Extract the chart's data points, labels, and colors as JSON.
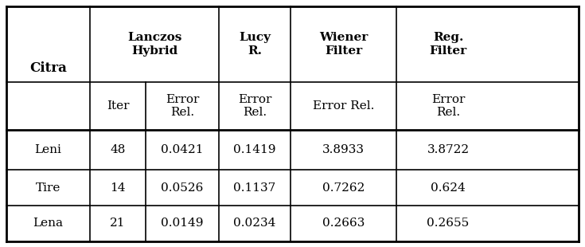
{
  "col_headers_top": [
    "Lanczos\nHybrid",
    "Lucy\nR.",
    "Wiener\nFilter",
    "Reg.\nFilter"
  ],
  "col_headers_sub": [
    "Iter",
    "Error\nRel.",
    "Error\nRel.",
    "Error Rel.",
    "Error\nRel."
  ],
  "row_labels": [
    "Leni",
    "Tire",
    "Lena"
  ],
  "rows": [
    [
      "48",
      "0.0421",
      "0.1419",
      "3.8933",
      "3.8722"
    ],
    [
      "14",
      "0.0526",
      "0.1137",
      "0.7262",
      "0.624"
    ],
    [
      "21",
      "0.0149",
      "0.0234",
      "0.2663",
      "0.2655"
    ]
  ],
  "background_color": "#ffffff",
  "text_color": "#000000",
  "line_color": "#000000",
  "col_bounds": [
    8,
    113,
    183,
    275,
    365,
    498,
    628,
    727
  ],
  "row_bounds": [
    8,
    103,
    163,
    213,
    258,
    303
  ],
  "font_size": 11,
  "lw_outer": 2.0,
  "lw_inner": 1.2
}
